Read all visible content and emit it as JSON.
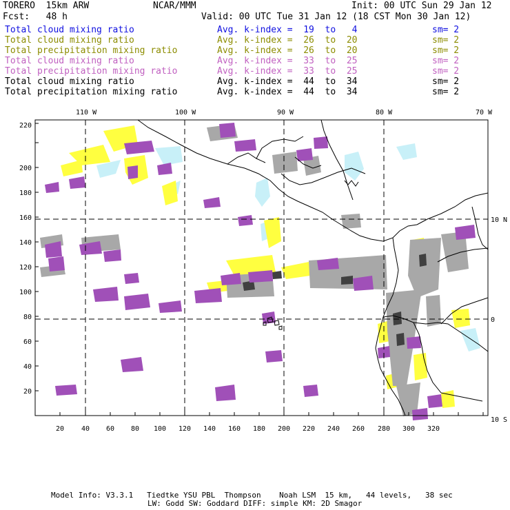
{
  "header": {
    "model": "TORERO  15km ARW",
    "org": "NCAR/MMM",
    "init": "Init: 00 UTC Sun 29 Jan 12",
    "fcst": "Fcst:   48 h",
    "valid": "Valid: 00 UTC Tue 31 Jan 12 (18 CST Mon 30 Jan 12)"
  },
  "legend": [
    {
      "field": "Total cloud mixing ratio",
      "kindex": "Avg. k-index =  19  to   4",
      "sm": "sm= 2",
      "color": "#1010e0"
    },
    {
      "field": "Total cloud mixing ratio",
      "kindex": "Avg. k-index =  26  to  20",
      "sm": "sm= 2",
      "color": "#8c8c00"
    },
    {
      "field": "Total precipitation mixing ratio",
      "kindex": "Avg. k-index =  26  to  20",
      "sm": "sm= 2",
      "color": "#8c8c00"
    },
    {
      "field": "Total cloud mixing ratio",
      "kindex": "Avg. k-index =  33  to  25",
      "sm": "sm= 2",
      "color": "#c060c0"
    },
    {
      "field": "Total precipitation mixing ratio",
      "kindex": "Avg. k-index =  33  to  25",
      "sm": "sm= 2",
      "color": "#c060c0"
    },
    {
      "field": "Total cloud mixing ratio",
      "kindex": "Avg. k-index =  44  to  34",
      "sm": "sm= 2",
      "color": "#000000"
    },
    {
      "field": "Total precipitation mixing ratio",
      "kindex": "Avg. k-index =  44  to  34",
      "sm": "sm= 2",
      "color": "#000000"
    }
  ],
  "map": {
    "lon_labels": [
      "110 W",
      "100 W",
      "90 W",
      "80 W",
      "70 W"
    ],
    "lat_labels": [
      "10 N",
      "0",
      "10 S"
    ],
    "y_ticks": [
      "20",
      "40",
      "60",
      "80",
      "100",
      "120",
      "140",
      "160",
      "180",
      "200",
      "220"
    ],
    "x_ticks": [
      "20",
      "40",
      "60",
      "80",
      "100",
      "120",
      "140",
      "160",
      "180",
      "200",
      "220",
      "240",
      "260",
      "280",
      "300",
      "320"
    ],
    "colors": {
      "cyan": "#c8f0f8",
      "yellow": "#ffff40",
      "purple": "#a050b8",
      "gray": "#a8a8a8",
      "dark": "#404040"
    }
  },
  "footer": {
    "line1": "Model Info: V3.3.1   Tiedtke YSU PBL  Thompson    Noah LSM  15 km,   44 levels,   38 sec",
    "line2": "LW: Godd SW: Goddard DIFF: simple KM: 2D Smagor"
  }
}
